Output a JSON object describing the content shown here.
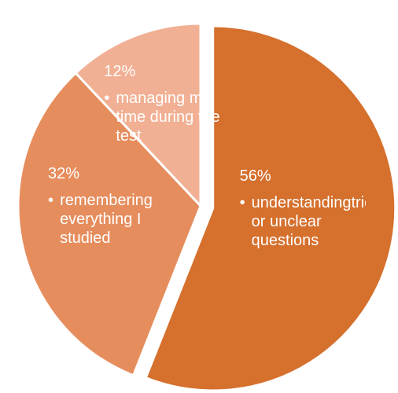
{
  "chart_data": {
    "type": "pie",
    "categories": [
      "understandingtricky or unclear questions",
      "remembering everything I studied",
      "managing my time during the test"
    ],
    "values": [
      56,
      32,
      12
    ],
    "value_labels": [
      "56%",
      "32%",
      "12%"
    ],
    "colors": [
      "#d5702d",
      "#e68d5d",
      "#f1b094"
    ],
    "exploded": [
      true,
      false,
      false
    ]
  }
}
